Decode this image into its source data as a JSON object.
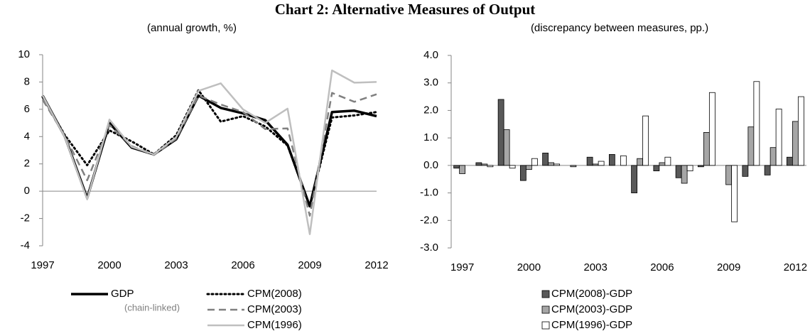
{
  "title": "Chart 2: Alternative Measures of Output",
  "chart_data": [
    {
      "type": "line",
      "subtitle": "(annual growth, %)",
      "x": [
        1997,
        1998,
        1999,
        2000,
        2001,
        2002,
        2003,
        2004,
        2005,
        2006,
        2007,
        2008,
        2009,
        2010,
        2011,
        2012
      ],
      "xlim": [
        1997,
        2012
      ],
      "xticks": [
        1997,
        2000,
        2003,
        2006,
        2009,
        2012
      ],
      "ylim": [
        -4,
        10
      ],
      "yticks": [
        -4,
        -2,
        0,
        2,
        4,
        6,
        8,
        10
      ],
      "series": [
        {
          "name": "GDP",
          "note": "(chain-linked)",
          "color": "#000000",
          "style": "solid",
          "width": 3.5,
          "values": [
            7.0,
            4.0,
            -0.5,
            5.0,
            3.2,
            2.7,
            3.8,
            7.0,
            6.1,
            5.7,
            5.2,
            3.4,
            -1.1,
            5.8,
            5.9,
            5.5
          ]
        },
        {
          "name": "CPM(2008)",
          "color": "#000000",
          "style": "dotted",
          "width": 3,
          "values": [
            6.9,
            4.1,
            1.9,
            4.45,
            3.65,
            2.7,
            4.1,
            7.4,
            5.1,
            5.5,
            4.75,
            3.35,
            -1.1,
            5.4,
            5.55,
            5.8
          ]
        },
        {
          "name": "CPM(2003)",
          "color": "#808080",
          "style": "dashed",
          "width": 2.5,
          "values": [
            6.7,
            4.05,
            0.8,
            4.85,
            3.3,
            2.65,
            3.85,
            7.0,
            6.35,
            5.8,
            4.55,
            4.6,
            -1.8,
            7.2,
            6.55,
            7.1
          ]
        },
        {
          "name": "CPM(1996)",
          "color": "#bfbfbf",
          "style": "solid",
          "width": 2.5,
          "values": [
            7.0,
            3.95,
            -0.6,
            5.25,
            3.25,
            2.7,
            3.95,
            7.35,
            7.9,
            6.0,
            5.0,
            6.05,
            -3.15,
            8.85,
            7.95,
            8.0
          ]
        }
      ]
    },
    {
      "type": "bar",
      "subtitle": "(discrepancy between measures, pp.)",
      "x": [
        1997,
        1998,
        1999,
        2000,
        2001,
        2002,
        2003,
        2004,
        2005,
        2006,
        2007,
        2008,
        2009,
        2010,
        2011,
        2012
      ],
      "xlim": [
        1996.5,
        2012.5
      ],
      "xticks": [
        1997,
        2000,
        2003,
        2006,
        2009,
        2012
      ],
      "ylim": [
        -3,
        4
      ],
      "yticks": [
        {
          "value": -3,
          "label": "-3.0"
        },
        {
          "value": -2,
          "label": "-2.0"
        },
        {
          "value": -1,
          "label": "-1.0"
        },
        {
          "value": 0,
          "label": "0.0"
        },
        {
          "value": 1,
          "label": "1.0"
        },
        {
          "value": 2,
          "label": "2.0"
        },
        {
          "value": 3,
          "label": "3.0"
        },
        {
          "value": 4,
          "label": "4.0"
        }
      ],
      "series": [
        {
          "name": "CPM(2008)-GDP",
          "color": "#595959",
          "values": [
            -0.1,
            0.1,
            2.4,
            -0.55,
            0.45,
            0.0,
            0.3,
            0.4,
            -1.0,
            -0.2,
            -0.45,
            -0.05,
            0.0,
            -0.4,
            -0.35,
            0.3
          ]
        },
        {
          "name": "CPM(2003)-GDP",
          "color": "#a6a6a6",
          "values": [
            -0.3,
            0.05,
            1.3,
            -0.15,
            0.1,
            -0.05,
            0.05,
            0.0,
            0.25,
            0.1,
            -0.65,
            1.2,
            -0.7,
            1.4,
            0.65,
            1.6
          ]
        },
        {
          "name": "CPM(1996)-GDP",
          "color": "#ffffff",
          "values": [
            0.0,
            -0.05,
            -0.1,
            0.25,
            0.05,
            0.0,
            0.15,
            0.35,
            1.8,
            0.3,
            -0.2,
            2.65,
            -2.05,
            3.05,
            2.05,
            2.5
          ]
        }
      ]
    }
  ]
}
